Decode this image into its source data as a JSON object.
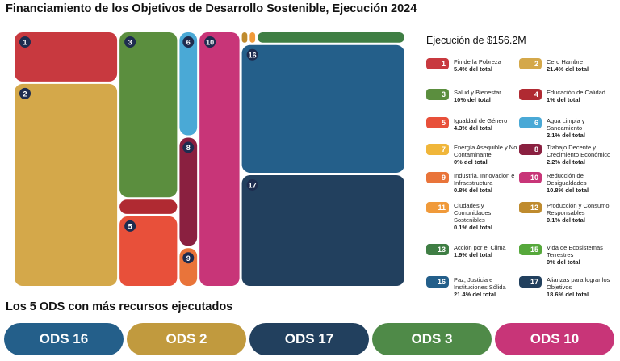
{
  "chart_data": {
    "type": "treemap",
    "title": "Financiamiento de los Objetivos de Desarrollo Sostenible, Ejecución 2024",
    "legend_title": "Ejecución de $156.2M",
    "ids": [
      1,
      2,
      3,
      4,
      5,
      6,
      7,
      8,
      9,
      10,
      11,
      12,
      13,
      15,
      16,
      17
    ],
    "categories": [
      "Fin de la Pobreza",
      "Cero Hambre",
      "Salud y Bienestar",
      "Educación de Calidad",
      "Igualdad de Género",
      "Agua Limpia y Saneamiento",
      "Energía Asequible y No Contaminante",
      "Trabajo Decente y Crecimiento Económico",
      "Industria, Innovación e Infraestructura",
      "Reducción de Desigualdades",
      "Ciudades y Comunidades Sostenibles",
      "Producción y Consumo Responsables",
      "Acción por el Clima",
      "Vida de Ecosistemas Terrestres",
      "Paz, Justicia e Instituciones Sólida",
      "Alianzas para lograr los Objetivos"
    ],
    "values": [
      5.4,
      21.4,
      10,
      1,
      4.3,
      2.1,
      0,
      2.2,
      0.8,
      10.8,
      0.1,
      0.1,
      1.9,
      0,
      21.4,
      18.6
    ],
    "value_labels": [
      "5.4% del total",
      "21.4% del total",
      "10% del total",
      "1% del total",
      "4.3% del total",
      "2.1% del total",
      "0% del total",
      "2.2% del total",
      "0.8% del total",
      "10.8% del total",
      "0.1% del total",
      "0.1% del total",
      "1.9% del total",
      "0% del total",
      "21.4% del total",
      "18.6% del total"
    ],
    "colors": [
      "#c8393f",
      "#d4a84a",
      "#5b8e3e",
      "#b02a32",
      "#e8503a",
      "#4aa9d6",
      "#f0b63a",
      "#8a2040",
      "#e9743a",
      "#c83578",
      "#f09a3a",
      "#bf8b2e",
      "#3f7e44",
      "#56a83b",
      "#245f8a",
      "#22405e"
    ]
  },
  "top5": {
    "title": "Los 5 ODS con más recursos ejecutados",
    "items": [
      {
        "label": "ODS 16",
        "color": "#245f8a"
      },
      {
        "label": "ODS 2",
        "color": "#c19a3e"
      },
      {
        "label": "ODS 17",
        "color": "#22405e"
      },
      {
        "label": "ODS 3",
        "color": "#4f8a48"
      },
      {
        "label": "ODS 10",
        "color": "#c83578"
      }
    ]
  }
}
